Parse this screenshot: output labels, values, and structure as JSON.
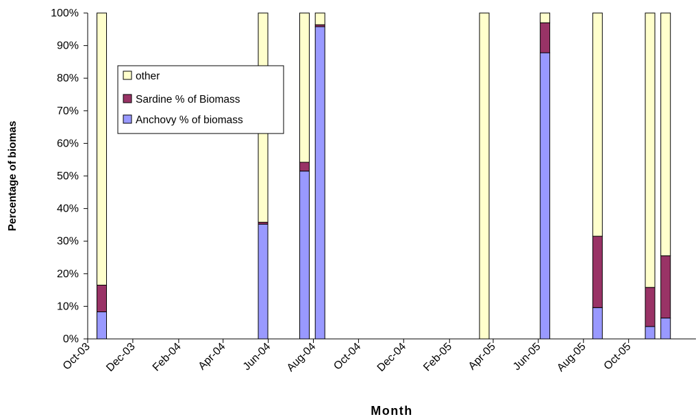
{
  "chart_data": {
    "type": "bar",
    "stacked": true,
    "percent_stacked": true,
    "xlabel": "Month",
    "ylabel": "Percentage of biomas",
    "ylim": [
      0,
      100
    ],
    "y_ticks": [
      "0%",
      "10%",
      "20%",
      "30%",
      "40%",
      "50%",
      "60%",
      "70%",
      "80%",
      "90%",
      "100%"
    ],
    "x_ticks": [
      "Oct-03",
      "Dec-03",
      "Feb-04",
      "Apr-04",
      "Jun-04",
      "Aug-04",
      "Oct-04",
      "Dec-04",
      "Feb-05",
      "Apr-05",
      "Jun-05",
      "Aug-05",
      "Oct-05"
    ],
    "x_range": [
      "2003-10-01",
      "2005-12-31"
    ],
    "legend_position": "upper-left",
    "grid": false,
    "dates": [
      "2003-10-20",
      "2004-05-25",
      "2004-07-20",
      "2004-08-10",
      "2005-03-20",
      "2005-06-10",
      "2005-08-20",
      "2005-10-30",
      "2005-11-20"
    ],
    "series": [
      {
        "name": "other",
        "color": "#FFFFCC",
        "values": [
          83.5,
          64.2,
          45.8,
          3.6,
          100,
          3.0,
          68.5,
          84.2,
          74.5
        ]
      },
      {
        "name": "Sardine % of Biomass",
        "color": "#993366",
        "values": [
          8.2,
          0.6,
          2.7,
          0.6,
          0,
          9.2,
          21.9,
          12.0,
          19.1
        ]
      },
      {
        "name": "Anchovy % of biomass",
        "color": "#9999FF",
        "values": [
          8.3,
          35.2,
          51.5,
          95.8,
          0,
          87.8,
          9.6,
          3.8,
          6.4
        ]
      }
    ]
  }
}
